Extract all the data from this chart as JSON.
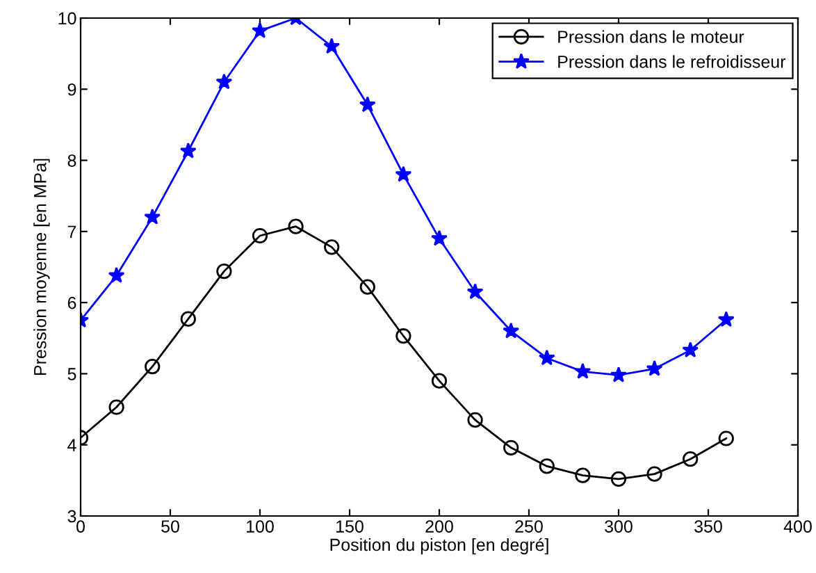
{
  "chart_data": {
    "type": "line",
    "xlabel": "Position du piston [en degré]",
    "ylabel": "Pression moyenne [en MPa]",
    "x": [
      0,
      20,
      40,
      60,
      80,
      100,
      120,
      140,
      160,
      180,
      200,
      220,
      240,
      260,
      280,
      300,
      320,
      340,
      360
    ],
    "series": [
      {
        "name": "Pression dans le moteur",
        "color": "#000000",
        "marker": "circle",
        "values": [
          4.1,
          4.53,
          5.1,
          5.77,
          6.44,
          6.94,
          7.07,
          6.78,
          6.22,
          5.53,
          4.9,
          4.35,
          3.96,
          3.7,
          3.57,
          3.52,
          3.59,
          3.8,
          4.09
        ]
      },
      {
        "name": "Pression dans le refroidisseur",
        "color": "#0000ff",
        "marker": "star",
        "values": [
          5.75,
          6.38,
          7.2,
          8.13,
          9.1,
          9.82,
          10.0,
          9.6,
          8.78,
          7.8,
          6.9,
          6.15,
          5.6,
          5.22,
          5.03,
          4.98,
          5.07,
          5.33,
          5.76
        ]
      }
    ],
    "xlim": [
      0,
      400
    ],
    "xticks": [
      0,
      50,
      100,
      150,
      200,
      250,
      300,
      350,
      400
    ],
    "ylim": [
      3,
      10
    ],
    "yticks": [
      3,
      4,
      5,
      6,
      7,
      8,
      9,
      10
    ],
    "grid": false,
    "legend": "top right",
    "line_style": "solid"
  }
}
